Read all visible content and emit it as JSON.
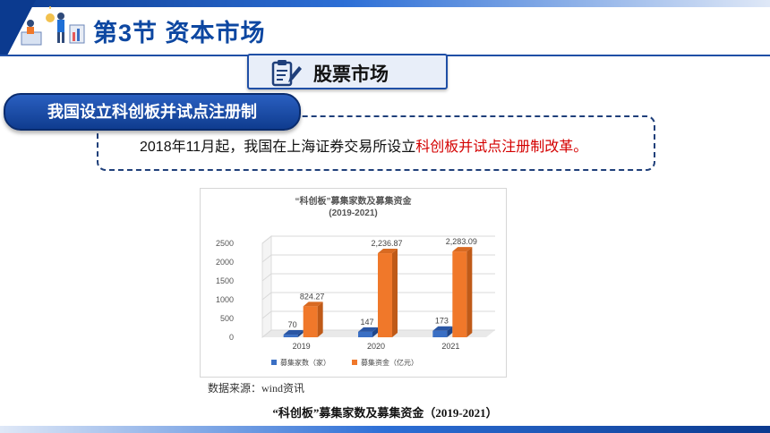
{
  "header": {
    "section_title": "第3节  资本市场"
  },
  "topic": {
    "label": "股票市场",
    "icon": "clipboard-pencil-icon"
  },
  "subtitle": {
    "label": "我国设立科创板并试点注册制"
  },
  "description": {
    "prefix": "2018年11月起，我国在上海证券交易所设立",
    "highlight": "科创板并试点注册制改革。",
    "highlight_color": "#d40000"
  },
  "source_note": "数据来源：wind资讯",
  "caption": "“科创板”募集家数及募集资金（2019-2021）",
  "colors": {
    "primary": "#0d47a1",
    "series_blue": "#3a6fc4",
    "series_orange": "#f0782a"
  },
  "chart_data": {
    "type": "bar",
    "title": "“科创板”募集家数及募集资金",
    "subtitle": "(2019-2021)",
    "categories": [
      "2019",
      "2020",
      "2021"
    ],
    "series": [
      {
        "name": "募集家数（家）",
        "values": [
          70,
          147,
          173
        ],
        "labels": [
          "70",
          "147",
          "173"
        ]
      },
      {
        "name": "募集资金（亿元）",
        "values": [
          824.27,
          2236.87,
          2283.09
        ],
        "labels": [
          "824.27",
          "2,236.87",
          "2,283.09"
        ]
      }
    ],
    "y_ticks": [
      "0",
      "500",
      "1000",
      "1500",
      "2000",
      "2500"
    ],
    "ylim": [
      0,
      2500
    ],
    "grid": true,
    "legend_position": "bottom"
  }
}
